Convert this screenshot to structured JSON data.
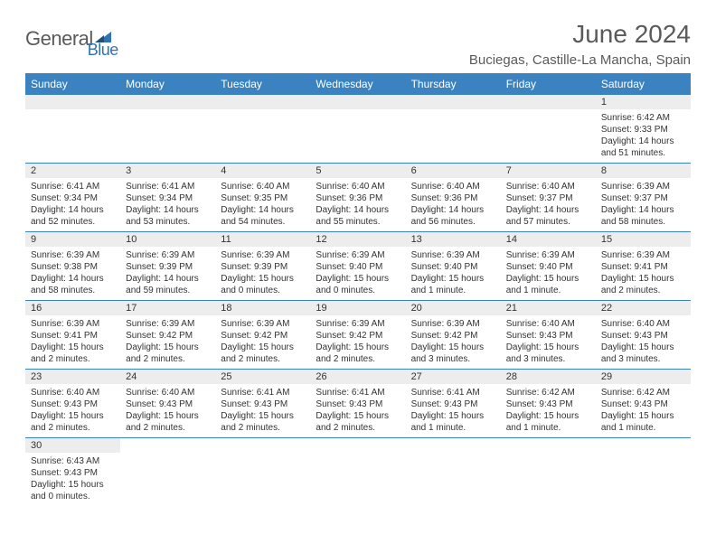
{
  "logo": {
    "text_main": "General",
    "text_accent": "Blue"
  },
  "title": "June 2024",
  "location": "Buciegas, Castille-La Mancha, Spain",
  "colors": {
    "header_bg": "#3b83c0",
    "header_text": "#ffffff",
    "daynum_bg": "#ededed",
    "row_border": "#3b83c0",
    "body_text": "#333333",
    "title_text": "#5a5a5a",
    "logo_accent": "#2e74b5"
  },
  "typography": {
    "title_fontsize": 28,
    "location_fontsize": 15,
    "dayheader_fontsize": 12,
    "daynum_fontsize": 11,
    "body_fontsize": 10
  },
  "day_headers": [
    "Sunday",
    "Monday",
    "Tuesday",
    "Wednesday",
    "Thursday",
    "Friday",
    "Saturday"
  ],
  "weeks": [
    [
      {
        "n": "",
        "lines": []
      },
      {
        "n": "",
        "lines": []
      },
      {
        "n": "",
        "lines": []
      },
      {
        "n": "",
        "lines": []
      },
      {
        "n": "",
        "lines": []
      },
      {
        "n": "",
        "lines": []
      },
      {
        "n": "1",
        "lines": [
          "Sunrise: 6:42 AM",
          "Sunset: 9:33 PM",
          "Daylight: 14 hours and 51 minutes."
        ]
      }
    ],
    [
      {
        "n": "2",
        "lines": [
          "Sunrise: 6:41 AM",
          "Sunset: 9:34 PM",
          "Daylight: 14 hours and 52 minutes."
        ]
      },
      {
        "n": "3",
        "lines": [
          "Sunrise: 6:41 AM",
          "Sunset: 9:34 PM",
          "Daylight: 14 hours and 53 minutes."
        ]
      },
      {
        "n": "4",
        "lines": [
          "Sunrise: 6:40 AM",
          "Sunset: 9:35 PM",
          "Daylight: 14 hours and 54 minutes."
        ]
      },
      {
        "n": "5",
        "lines": [
          "Sunrise: 6:40 AM",
          "Sunset: 9:36 PM",
          "Daylight: 14 hours and 55 minutes."
        ]
      },
      {
        "n": "6",
        "lines": [
          "Sunrise: 6:40 AM",
          "Sunset: 9:36 PM",
          "Daylight: 14 hours and 56 minutes."
        ]
      },
      {
        "n": "7",
        "lines": [
          "Sunrise: 6:40 AM",
          "Sunset: 9:37 PM",
          "Daylight: 14 hours and 57 minutes."
        ]
      },
      {
        "n": "8",
        "lines": [
          "Sunrise: 6:39 AM",
          "Sunset: 9:37 PM",
          "Daylight: 14 hours and 58 minutes."
        ]
      }
    ],
    [
      {
        "n": "9",
        "lines": [
          "Sunrise: 6:39 AM",
          "Sunset: 9:38 PM",
          "Daylight: 14 hours and 58 minutes."
        ]
      },
      {
        "n": "10",
        "lines": [
          "Sunrise: 6:39 AM",
          "Sunset: 9:39 PM",
          "Daylight: 14 hours and 59 minutes."
        ]
      },
      {
        "n": "11",
        "lines": [
          "Sunrise: 6:39 AM",
          "Sunset: 9:39 PM",
          "Daylight: 15 hours and 0 minutes."
        ]
      },
      {
        "n": "12",
        "lines": [
          "Sunrise: 6:39 AM",
          "Sunset: 9:40 PM",
          "Daylight: 15 hours and 0 minutes."
        ]
      },
      {
        "n": "13",
        "lines": [
          "Sunrise: 6:39 AM",
          "Sunset: 9:40 PM",
          "Daylight: 15 hours and 1 minute."
        ]
      },
      {
        "n": "14",
        "lines": [
          "Sunrise: 6:39 AM",
          "Sunset: 9:40 PM",
          "Daylight: 15 hours and 1 minute."
        ]
      },
      {
        "n": "15",
        "lines": [
          "Sunrise: 6:39 AM",
          "Sunset: 9:41 PM",
          "Daylight: 15 hours and 2 minutes."
        ]
      }
    ],
    [
      {
        "n": "16",
        "lines": [
          "Sunrise: 6:39 AM",
          "Sunset: 9:41 PM",
          "Daylight: 15 hours and 2 minutes."
        ]
      },
      {
        "n": "17",
        "lines": [
          "Sunrise: 6:39 AM",
          "Sunset: 9:42 PM",
          "Daylight: 15 hours and 2 minutes."
        ]
      },
      {
        "n": "18",
        "lines": [
          "Sunrise: 6:39 AM",
          "Sunset: 9:42 PM",
          "Daylight: 15 hours and 2 minutes."
        ]
      },
      {
        "n": "19",
        "lines": [
          "Sunrise: 6:39 AM",
          "Sunset: 9:42 PM",
          "Daylight: 15 hours and 2 minutes."
        ]
      },
      {
        "n": "20",
        "lines": [
          "Sunrise: 6:39 AM",
          "Sunset: 9:42 PM",
          "Daylight: 15 hours and 3 minutes."
        ]
      },
      {
        "n": "21",
        "lines": [
          "Sunrise: 6:40 AM",
          "Sunset: 9:43 PM",
          "Daylight: 15 hours and 3 minutes."
        ]
      },
      {
        "n": "22",
        "lines": [
          "Sunrise: 6:40 AM",
          "Sunset: 9:43 PM",
          "Daylight: 15 hours and 3 minutes."
        ]
      }
    ],
    [
      {
        "n": "23",
        "lines": [
          "Sunrise: 6:40 AM",
          "Sunset: 9:43 PM",
          "Daylight: 15 hours and 2 minutes."
        ]
      },
      {
        "n": "24",
        "lines": [
          "Sunrise: 6:40 AM",
          "Sunset: 9:43 PM",
          "Daylight: 15 hours and 2 minutes."
        ]
      },
      {
        "n": "25",
        "lines": [
          "Sunrise: 6:41 AM",
          "Sunset: 9:43 PM",
          "Daylight: 15 hours and 2 minutes."
        ]
      },
      {
        "n": "26",
        "lines": [
          "Sunrise: 6:41 AM",
          "Sunset: 9:43 PM",
          "Daylight: 15 hours and 2 minutes."
        ]
      },
      {
        "n": "27",
        "lines": [
          "Sunrise: 6:41 AM",
          "Sunset: 9:43 PM",
          "Daylight: 15 hours and 1 minute."
        ]
      },
      {
        "n": "28",
        "lines": [
          "Sunrise: 6:42 AM",
          "Sunset: 9:43 PM",
          "Daylight: 15 hours and 1 minute."
        ]
      },
      {
        "n": "29",
        "lines": [
          "Sunrise: 6:42 AM",
          "Sunset: 9:43 PM",
          "Daylight: 15 hours and 1 minute."
        ]
      }
    ],
    [
      {
        "n": "30",
        "lines": [
          "Sunrise: 6:43 AM",
          "Sunset: 9:43 PM",
          "Daylight: 15 hours and 0 minutes."
        ]
      },
      {
        "n": "",
        "lines": []
      },
      {
        "n": "",
        "lines": []
      },
      {
        "n": "",
        "lines": []
      },
      {
        "n": "",
        "lines": []
      },
      {
        "n": "",
        "lines": []
      },
      {
        "n": "",
        "lines": []
      }
    ]
  ]
}
